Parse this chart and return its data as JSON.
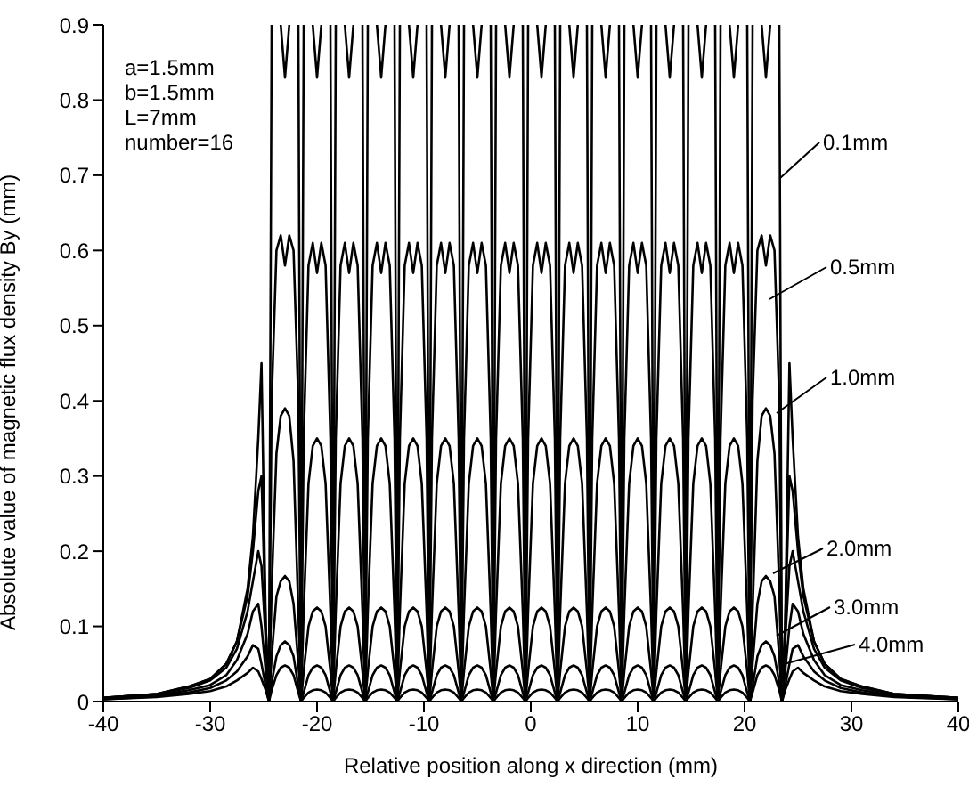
{
  "chart_data": {
    "type": "line",
    "xlabel": "Relative position along x direction (mm)",
    "ylabel": "Absolute value of magnetic flux density By (mm)",
    "legend": "right",
    "annotations": [
      "a=1.5mm",
      "b=1.5mm",
      "L=7mm",
      "number=16"
    ],
    "xlim": [
      -40,
      40
    ],
    "xticks": [
      -40,
      -30,
      -20,
      -10,
      0,
      10,
      20,
      30,
      40
    ],
    "ylim": [
      0,
      0.9
    ],
    "yticks": [
      0,
      0.1,
      0.2,
      0.3,
      0.4,
      0.5,
      0.6,
      0.7,
      0.8,
      0.9
    ],
    "x": [
      -40,
      -35,
      -32,
      -30,
      -28.5,
      -27.5,
      -26.5,
      -26,
      -25.5,
      -25.2,
      -24.8,
      -24.5,
      -24.25,
      -23.8,
      -23.4,
      -23,
      -22.6,
      -22.2,
      -21.75,
      -21.5,
      -21.25,
      -20.8,
      -20.4,
      -20,
      -19.6,
      -19.2,
      -18.75,
      -18.5,
      -18.25,
      -17.8,
      -17.4,
      -17,
      -16.6,
      -16.2,
      -15.75,
      -15.5,
      -15.25,
      -14.8,
      -14.4,
      -14,
      -13.6,
      -13.2,
      -12.75,
      -12.5,
      -12.25,
      -11.8,
      -11.4,
      -11,
      -10.6,
      -10.2,
      -9.75,
      -9.5,
      -9.25,
      -8.8,
      -8.4,
      -8,
      -7.6,
      -7.2,
      -6.75,
      -6.5,
      -6.25,
      -5.8,
      -5.4,
      -5,
      -4.6,
      -4.2,
      -3.75,
      -3.5,
      -3.25,
      -2.8,
      -2.4,
      -2,
      -1.6,
      -1.2,
      -0.75,
      -0.5,
      -0.25,
      0.2,
      0.6,
      1,
      1.4,
      1.8,
      2.25,
      2.5,
      2.75,
      3.2,
      3.6,
      4,
      4.4,
      4.8,
      5.25,
      5.5,
      5.75,
      6.2,
      6.6,
      7,
      7.4,
      7.8,
      8.25,
      8.5,
      8.75,
      9.2,
      9.6,
      10,
      10.4,
      10.8,
      11.25,
      11.5,
      11.75,
      12.2,
      12.6,
      13,
      13.4,
      13.8,
      14.25,
      14.5,
      14.75,
      15.2,
      15.6,
      16,
      16.4,
      16.8,
      17.25,
      17.5,
      17.75,
      18.2,
      18.6,
      19,
      19.4,
      19.8,
      20.25,
      20.5,
      20.75,
      21.2,
      21.6,
      22,
      22.4,
      22.8,
      23.25,
      23.5,
      23.8,
      24.2,
      24.5,
      25,
      25.5,
      26.5,
      27.5,
      29,
      31,
      34,
      40
    ],
    "series": [
      {
        "name": "0.1mm",
        "color": "#000000",
        "values": [
          0.005,
          0.01,
          0.02,
          0.03,
          0.05,
          0.08,
          0.15,
          0.22,
          0.35,
          0.45,
          0.1,
          0,
          0.9,
          null,
          0.9,
          0.83,
          0.9,
          null,
          0.9,
          0,
          0.9,
          null,
          0.9,
          0.83,
          0.9,
          null,
          0.9,
          0,
          0.9,
          null,
          0.9,
          0.83,
          0.9,
          null,
          0.9,
          0,
          0.9,
          null,
          0.9,
          0.83,
          0.9,
          null,
          0.9,
          0,
          0.9,
          null,
          0.9,
          0.83,
          0.9,
          null,
          0.9,
          0,
          0.9,
          null,
          0.9,
          0.83,
          0.9,
          null,
          0.9,
          0,
          0.9,
          null,
          0.9,
          0.83,
          0.9,
          null,
          0.9,
          0,
          0.9,
          null,
          0.9,
          0.83,
          0.9,
          null,
          0.9,
          0,
          0.9,
          null,
          0.9,
          0.83,
          0.9,
          null,
          0.9,
          0,
          0.9,
          null,
          0.9,
          0.83,
          0.9,
          null,
          0.9,
          0,
          0.9,
          null,
          0.9,
          0.83,
          0.9,
          null,
          0.9,
          0,
          0.9,
          null,
          0.9,
          0.83,
          0.9,
          null,
          0.9,
          0,
          0.9,
          null,
          0.9,
          0.83,
          0.9,
          null,
          0.9,
          0,
          0.9,
          null,
          0.9,
          0.83,
          0.9,
          null,
          0.9,
          0,
          0.9,
          null,
          0.9,
          0.83,
          0.9,
          null,
          0.9,
          0,
          0.9,
          null,
          0.9,
          0.83,
          0.9,
          null,
          0.9,
          0,
          0.1,
          0.45,
          0.35,
          0.22,
          0.15,
          0.08,
          0.05,
          0.03,
          0.02,
          0.01,
          0.005
        ]
      },
      {
        "name": "0.5mm",
        "color": "#000000",
        "values": [
          0.005,
          0.01,
          0.02,
          0.03,
          0.05,
          0.08,
          0.14,
          0.2,
          0.28,
          0.3,
          0.1,
          0,
          0.4,
          0.6,
          0.62,
          0.58,
          0.62,
          0.6,
          0.4,
          0,
          0.35,
          0.58,
          0.61,
          0.57,
          0.61,
          0.58,
          0.35,
          0,
          0.35,
          0.58,
          0.61,
          0.57,
          0.61,
          0.58,
          0.35,
          0,
          0.35,
          0.58,
          0.61,
          0.57,
          0.61,
          0.58,
          0.35,
          0,
          0.35,
          0.58,
          0.61,
          0.57,
          0.61,
          0.58,
          0.35,
          0,
          0.35,
          0.58,
          0.61,
          0.57,
          0.61,
          0.58,
          0.35,
          0,
          0.35,
          0.58,
          0.61,
          0.57,
          0.61,
          0.58,
          0.35,
          0,
          0.35,
          0.58,
          0.61,
          0.57,
          0.61,
          0.58,
          0.35,
          0,
          0.35,
          0.58,
          0.61,
          0.57,
          0.61,
          0.58,
          0.35,
          0,
          0.35,
          0.58,
          0.61,
          0.57,
          0.61,
          0.58,
          0.35,
          0,
          0.35,
          0.58,
          0.61,
          0.57,
          0.61,
          0.58,
          0.35,
          0,
          0.35,
          0.58,
          0.61,
          0.57,
          0.61,
          0.58,
          0.35,
          0,
          0.35,
          0.58,
          0.61,
          0.57,
          0.61,
          0.58,
          0.35,
          0,
          0.35,
          0.58,
          0.61,
          0.57,
          0.61,
          0.58,
          0.35,
          0,
          0.35,
          0.58,
          0.61,
          0.57,
          0.61,
          0.58,
          0.35,
          0,
          0.4,
          0.6,
          0.62,
          0.58,
          0.62,
          0.6,
          0.4,
          0,
          0.1,
          0.3,
          0.28,
          0.2,
          0.14,
          0.08,
          0.05,
          0.03,
          0.02,
          0.01,
          0.005
        ]
      },
      {
        "name": "1.0mm",
        "color": "#000000",
        "values": [
          0.005,
          0.01,
          0.018,
          0.028,
          0.045,
          0.07,
          0.12,
          0.16,
          0.2,
          0.18,
          0.08,
          0,
          0.15,
          0.33,
          0.38,
          0.39,
          0.38,
          0.32,
          0.12,
          0,
          0.12,
          0.29,
          0.34,
          0.35,
          0.34,
          0.29,
          0.12,
          0,
          0.12,
          0.29,
          0.34,
          0.35,
          0.34,
          0.29,
          0.12,
          0,
          0.12,
          0.29,
          0.34,
          0.35,
          0.34,
          0.29,
          0.12,
          0,
          0.12,
          0.29,
          0.34,
          0.35,
          0.34,
          0.29,
          0.12,
          0,
          0.12,
          0.29,
          0.34,
          0.35,
          0.34,
          0.29,
          0.12,
          0,
          0.12,
          0.29,
          0.34,
          0.35,
          0.34,
          0.29,
          0.12,
          0,
          0.12,
          0.29,
          0.34,
          0.35,
          0.34,
          0.29,
          0.12,
          0,
          0.12,
          0.29,
          0.34,
          0.35,
          0.34,
          0.29,
          0.12,
          0,
          0.12,
          0.29,
          0.34,
          0.35,
          0.34,
          0.29,
          0.12,
          0,
          0.12,
          0.29,
          0.34,
          0.35,
          0.34,
          0.29,
          0.12,
          0,
          0.12,
          0.29,
          0.34,
          0.35,
          0.34,
          0.29,
          0.12,
          0,
          0.12,
          0.29,
          0.34,
          0.35,
          0.34,
          0.29,
          0.12,
          0,
          0.12,
          0.29,
          0.34,
          0.35,
          0.34,
          0.29,
          0.12,
          0,
          0.12,
          0.29,
          0.34,
          0.35,
          0.34,
          0.29,
          0.12,
          0,
          0.12,
          0.32,
          0.38,
          0.39,
          0.38,
          0.33,
          0.15,
          0,
          0.08,
          0.18,
          0.2,
          0.16,
          0.12,
          0.07,
          0.045,
          0.028,
          0.018,
          0.01,
          0.005
        ]
      },
      {
        "name": "2.0mm",
        "color": "#000000",
        "values": [
          0.004,
          0.008,
          0.015,
          0.022,
          0.035,
          0.055,
          0.09,
          0.12,
          0.13,
          0.1,
          0.04,
          0,
          0.06,
          0.14,
          0.16,
          0.167,
          0.16,
          0.13,
          0.05,
          0,
          0.04,
          0.1,
          0.12,
          0.125,
          0.12,
          0.1,
          0.04,
          0,
          0.04,
          0.1,
          0.12,
          0.125,
          0.12,
          0.1,
          0.04,
          0,
          0.04,
          0.1,
          0.12,
          0.125,
          0.12,
          0.1,
          0.04,
          0,
          0.04,
          0.1,
          0.12,
          0.125,
          0.12,
          0.1,
          0.04,
          0,
          0.04,
          0.1,
          0.12,
          0.125,
          0.12,
          0.1,
          0.04,
          0,
          0.04,
          0.1,
          0.12,
          0.125,
          0.12,
          0.1,
          0.04,
          0,
          0.04,
          0.1,
          0.12,
          0.125,
          0.12,
          0.1,
          0.04,
          0,
          0.04,
          0.1,
          0.12,
          0.125,
          0.12,
          0.1,
          0.04,
          0,
          0.04,
          0.1,
          0.12,
          0.125,
          0.12,
          0.1,
          0.04,
          0,
          0.04,
          0.1,
          0.12,
          0.125,
          0.12,
          0.1,
          0.04,
          0,
          0.04,
          0.1,
          0.12,
          0.125,
          0.12,
          0.1,
          0.04,
          0,
          0.04,
          0.1,
          0.12,
          0.125,
          0.12,
          0.1,
          0.04,
          0,
          0.04,
          0.1,
          0.12,
          0.125,
          0.12,
          0.1,
          0.04,
          0,
          0.04,
          0.1,
          0.12,
          0.125,
          0.12,
          0.1,
          0.04,
          0,
          0.05,
          0.13,
          0.16,
          0.167,
          0.16,
          0.14,
          0.06,
          0,
          0.04,
          0.1,
          0.13,
          0.12,
          0.09,
          0.055,
          0.035,
          0.022,
          0.015,
          0.008,
          0.004
        ]
      },
      {
        "name": "3.0mm",
        "color": "#000000",
        "values": [
          0.003,
          0.007,
          0.012,
          0.018,
          0.028,
          0.04,
          0.06,
          0.075,
          0.07,
          0.05,
          0.02,
          0,
          0.025,
          0.06,
          0.075,
          0.08,
          0.075,
          0.06,
          0.02,
          0,
          0.012,
          0.035,
          0.045,
          0.048,
          0.045,
          0.035,
          0.012,
          0,
          0.012,
          0.035,
          0.045,
          0.048,
          0.045,
          0.035,
          0.012,
          0,
          0.012,
          0.035,
          0.045,
          0.048,
          0.045,
          0.035,
          0.012,
          0,
          0.012,
          0.035,
          0.045,
          0.048,
          0.045,
          0.035,
          0.012,
          0,
          0.012,
          0.035,
          0.045,
          0.048,
          0.045,
          0.035,
          0.012,
          0,
          0.012,
          0.035,
          0.045,
          0.048,
          0.045,
          0.035,
          0.012,
          0,
          0.012,
          0.035,
          0.045,
          0.048,
          0.045,
          0.035,
          0.012,
          0,
          0.012,
          0.035,
          0.045,
          0.048,
          0.045,
          0.035,
          0.012,
          0,
          0.012,
          0.035,
          0.045,
          0.048,
          0.045,
          0.035,
          0.012,
          0,
          0.012,
          0.035,
          0.045,
          0.048,
          0.045,
          0.035,
          0.012,
          0,
          0.012,
          0.035,
          0.045,
          0.048,
          0.045,
          0.035,
          0.012,
          0,
          0.012,
          0.035,
          0.045,
          0.048,
          0.045,
          0.035,
          0.012,
          0,
          0.012,
          0.035,
          0.045,
          0.048,
          0.045,
          0.035,
          0.012,
          0,
          0.012,
          0.035,
          0.045,
          0.048,
          0.045,
          0.035,
          0.012,
          0,
          0.02,
          0.06,
          0.075,
          0.08,
          0.075,
          0.06,
          0.025,
          0,
          0.02,
          0.05,
          0.07,
          0.075,
          0.06,
          0.04,
          0.028,
          0.018,
          0.012,
          0.007,
          0.003
        ]
      },
      {
        "name": "4.0mm",
        "color": "#000000",
        "values": [
          0.003,
          0.006,
          0.01,
          0.014,
          0.02,
          0.028,
          0.038,
          0.045,
          0.04,
          0.03,
          0.015,
          0,
          0.015,
          0.035,
          0.045,
          0.048,
          0.045,
          0.035,
          0.012,
          0,
          0.005,
          0.012,
          0.015,
          0.016,
          0.015,
          0.012,
          0.005,
          0,
          0.005,
          0.012,
          0.015,
          0.016,
          0.015,
          0.012,
          0.005,
          0,
          0.005,
          0.012,
          0.015,
          0.016,
          0.015,
          0.012,
          0.005,
          0,
          0.005,
          0.012,
          0.015,
          0.016,
          0.015,
          0.012,
          0.005,
          0,
          0.005,
          0.012,
          0.015,
          0.016,
          0.015,
          0.012,
          0.005,
          0,
          0.005,
          0.012,
          0.015,
          0.016,
          0.015,
          0.012,
          0.005,
          0,
          0.005,
          0.012,
          0.015,
          0.016,
          0.015,
          0.012,
          0.005,
          0,
          0.005,
          0.012,
          0.015,
          0.016,
          0.015,
          0.012,
          0.005,
          0,
          0.005,
          0.012,
          0.015,
          0.016,
          0.015,
          0.012,
          0.005,
          0,
          0.005,
          0.012,
          0.015,
          0.016,
          0.015,
          0.012,
          0.005,
          0,
          0.005,
          0.012,
          0.015,
          0.016,
          0.015,
          0.012,
          0.005,
          0,
          0.005,
          0.012,
          0.015,
          0.016,
          0.015,
          0.012,
          0.005,
          0,
          0.005,
          0.012,
          0.015,
          0.016,
          0.015,
          0.012,
          0.005,
          0,
          0.005,
          0.012,
          0.015,
          0.016,
          0.015,
          0.012,
          0.005,
          0,
          0.012,
          0.035,
          0.045,
          0.048,
          0.045,
          0.035,
          0.015,
          0,
          0.015,
          0.03,
          0.04,
          0.045,
          0.038,
          0.028,
          0.02,
          0.014,
          0.01,
          0.006,
          0.003
        ]
      }
    ]
  }
}
